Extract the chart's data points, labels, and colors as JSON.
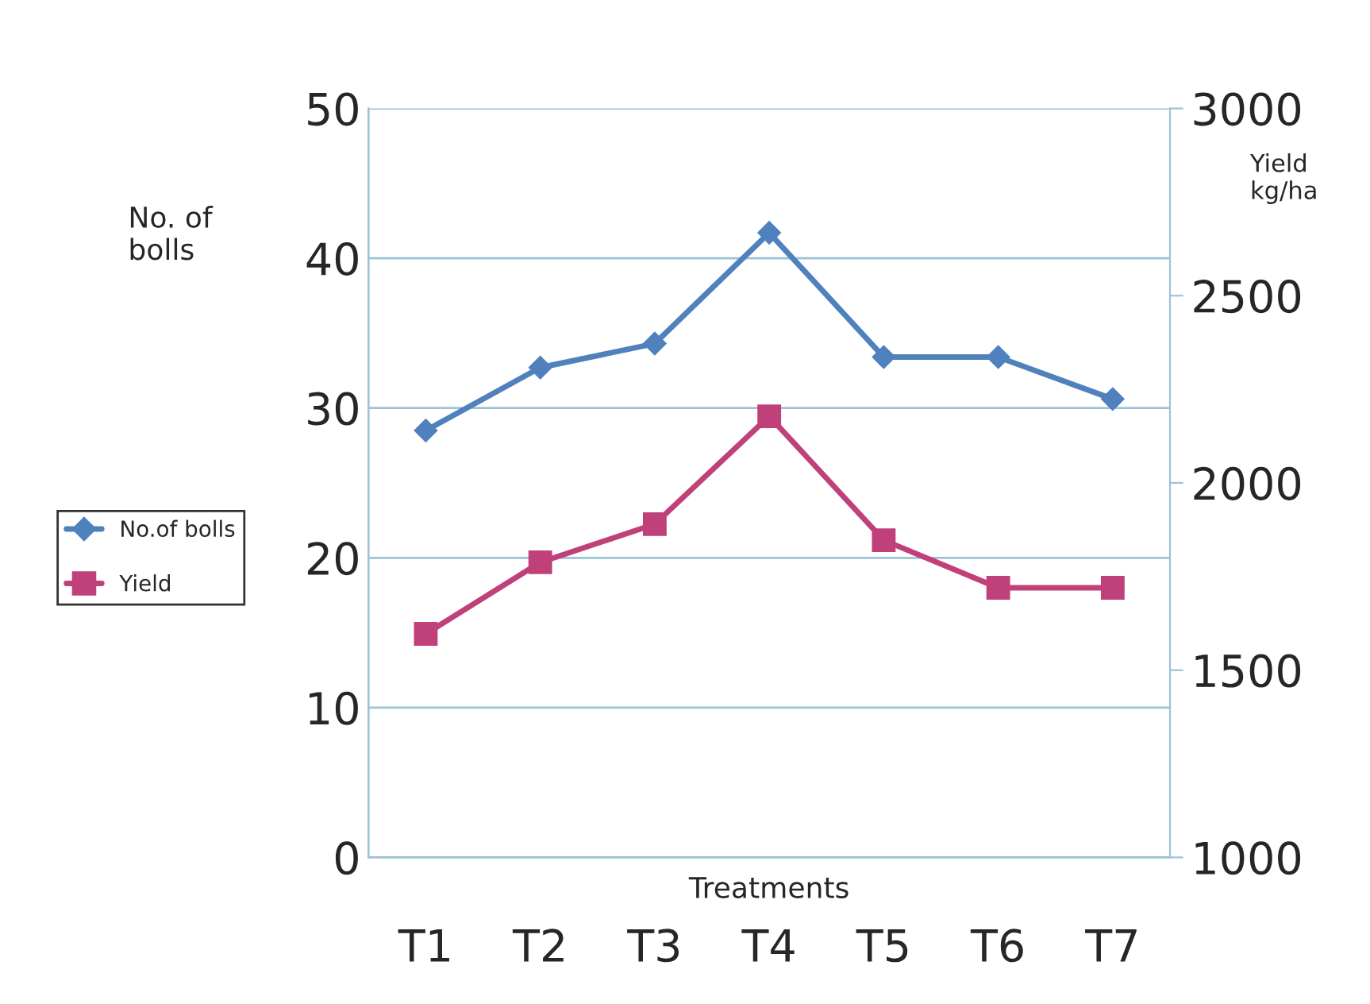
{
  "chart_data": {
    "type": "line",
    "xlabel": "Treatments",
    "ylabel": "No. of\nbolls",
    "y2label": "Yield\nkg/ha",
    "categories": [
      "T1",
      "T2",
      "T3",
      "T4",
      "T5",
      "T6",
      "T7"
    ],
    "series": [
      {
        "name": "No.of bolls",
        "color": "#4f81bd",
        "marker": "diamond",
        "values": [
          28.5,
          32.7,
          34.3,
          41.7,
          33.4,
          33.4,
          30.6
        ]
      },
      {
        "name": "Yield",
        "color": "#c0407a",
        "marker": "square",
        "axis": "y2",
        "values": [
          1597,
          1788,
          1890,
          2178,
          1847,
          1720,
          1720
        ]
      }
    ],
    "ylim": [
      0,
      50
    ],
    "yticks": [
      0,
      10,
      20,
      30,
      40,
      50
    ],
    "y2lim": [
      1000,
      3000
    ],
    "y2ticks": [
      1000,
      1500,
      2000,
      2500,
      3000
    ],
    "grid": "y",
    "legend": "left"
  }
}
